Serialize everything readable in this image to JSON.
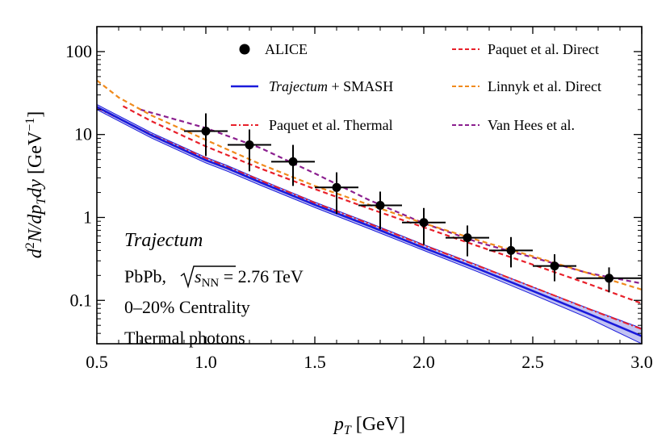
{
  "chart_data": {
    "type": "line",
    "xlabel_main": "p",
    "xlabel_sub": "T",
    "xlabel_unit": " [GeV]",
    "ylabel_prefix": "d",
    "ylabel_sup2": "2",
    "ylabel_mid": "N/dp",
    "ylabel_sub": "T",
    "ylabel_dy": "dy",
    "ylabel_unit": " [GeV",
    "ylabel_exp": "−1",
    "ylabel_close": "]",
    "xlim": [
      0.5,
      3.0
    ],
    "ylim": [
      0.03,
      200
    ],
    "yscale": "log",
    "x_ticks": [
      "0.5",
      "1.0",
      "1.5",
      "2.0",
      "2.5",
      "3.0"
    ],
    "y_ticks": [
      "0.1",
      "1",
      "10",
      "100"
    ],
    "grid": false,
    "legend_placement": "top",
    "annotations": {
      "title": "Trajectum",
      "system": "PbPb,",
      "sqrt_var": "s",
      "sqrt_sub": "NN",
      "energy": " = 2.76 TeV",
      "centrality": "0–20% Centrality",
      "photons": "Thermal photons"
    },
    "series": [
      {
        "name": "ALICE",
        "kind": "points",
        "color": "#000000",
        "x": [
          1.0,
          1.2,
          1.4,
          1.6,
          1.8,
          2.0,
          2.2,
          2.4,
          2.6,
          2.85
        ],
        "y": [
          11.0,
          7.5,
          4.7,
          2.3,
          1.4,
          0.87,
          0.57,
          0.4,
          0.26,
          0.185
        ],
        "x_err": [
          0.1,
          0.1,
          0.1,
          0.1,
          0.1,
          0.1,
          0.1,
          0.1,
          0.1,
          0.15
        ],
        "y_low": [
          5.5,
          3.6,
          2.4,
          1.1,
          0.72,
          0.47,
          0.34,
          0.25,
          0.17,
          0.125
        ],
        "y_high": [
          18.0,
          11.5,
          7.5,
          3.5,
          2.05,
          1.3,
          0.8,
          0.58,
          0.36,
          0.25
        ]
      },
      {
        "name_italic": "Trajectum",
        "name": " + SMASH",
        "kind": "band",
        "color": "#1a1adb",
        "band_color": "#b7b9f0",
        "x": [
          0.5,
          0.75,
          1.0,
          1.1,
          1.25,
          1.5,
          1.75,
          2.0,
          2.25,
          2.5,
          2.75,
          3.0
        ],
        "y": [
          21.5,
          9.8,
          4.9,
          3.9,
          2.65,
          1.42,
          0.79,
          0.43,
          0.24,
          0.13,
          0.07,
          0.037
        ],
        "y_low": [
          20.0,
          9.1,
          4.55,
          3.6,
          2.45,
          1.32,
          0.73,
          0.4,
          0.22,
          0.118,
          0.062,
          0.03
        ],
        "y_high": [
          23.0,
          10.5,
          5.3,
          4.2,
          2.85,
          1.53,
          0.86,
          0.47,
          0.265,
          0.145,
          0.081,
          0.046
        ]
      },
      {
        "name": "Paquet et al. Thermal",
        "kind": "dashdot",
        "color": "#e8202a",
        "x": [
          0.5,
          0.75,
          1.0,
          1.25,
          1.5,
          1.75,
          2.0,
          2.25,
          2.5,
          2.75,
          3.0
        ],
        "y": [
          21.0,
          10.0,
          5.2,
          2.8,
          1.5,
          0.84,
          0.46,
          0.26,
          0.145,
          0.08,
          0.045
        ]
      },
      {
        "name": "Paquet et al. Direct",
        "kind": "dashed",
        "color": "#e8202a",
        "x": [
          0.62,
          0.75,
          1.0,
          1.25,
          1.5,
          1.75,
          2.0,
          2.25,
          2.5,
          2.75,
          3.0
        ],
        "y": [
          22.0,
          14.5,
          7.2,
          3.9,
          2.2,
          1.28,
          0.76,
          0.45,
          0.27,
          0.16,
          0.092
        ]
      },
      {
        "name": "Linnyk et al. Direct",
        "kind": "dashed",
        "color": "#f08a1c",
        "x": [
          0.5,
          0.6,
          0.75,
          1.0,
          1.25,
          1.5,
          1.75,
          2.0,
          2.25,
          2.5,
          2.75,
          3.0
        ],
        "y": [
          45.0,
          28.0,
          17.0,
          8.6,
          4.4,
          2.4,
          1.42,
          0.85,
          0.53,
          0.34,
          0.215,
          0.135
        ]
      },
      {
        "name": "Van Hees et al.",
        "kind": "dashed",
        "color": "#8b1f8f",
        "x": [
          0.7,
          1.0,
          1.25,
          1.5,
          1.75,
          2.0,
          2.25,
          2.5,
          2.75,
          3.0
        ],
        "y": [
          20.0,
          12.0,
          6.9,
          3.4,
          1.62,
          0.85,
          0.5,
          0.33,
          0.215,
          0.16
        ]
      }
    ]
  }
}
